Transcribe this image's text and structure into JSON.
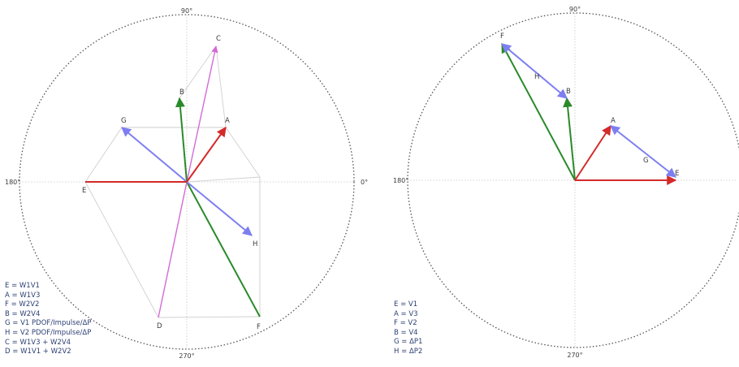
{
  "diagrams": [
    {
      "axis_labels": {
        "top": "90°",
        "left": "180°",
        "right": "0°",
        "bottom": "270°"
      },
      "legend": [
        "E = W1V1",
        "A = W1V3",
        "F = W2V2",
        "B = W2V4",
        "G = V1 PDOF/Impulse/ΔP",
        "H = V2 PDOF/Impulse/ΔP",
        "C = W1V3 + W2V4",
        "D = W1V1 + W2V2"
      ],
      "vectors": [
        {
          "label": "E"
        },
        {
          "label": "A"
        },
        {
          "label": "F"
        },
        {
          "label": "B"
        },
        {
          "label": "G"
        },
        {
          "label": "H"
        },
        {
          "label": "C"
        },
        {
          "label": "D"
        }
      ]
    },
    {
      "axis_labels": {
        "top": "90°",
        "left": "180°",
        "bottom": "270°"
      },
      "legend": [
        "E = V1",
        "A = V3",
        "F = V2",
        "B = V4",
        "G = ΔP1",
        "H = ΔP2"
      ],
      "vectors": [
        {
          "label": "E"
        },
        {
          "label": "A"
        },
        {
          "label": "F"
        },
        {
          "label": "B"
        },
        {
          "label": "G"
        },
        {
          "label": "H"
        }
      ]
    }
  ],
  "colors": {
    "red": "#d42a2a",
    "green": "#2a8a2a",
    "blue": "#7d7ff0",
    "magenta": "#d46ad8",
    "guide": "#cfcfcf",
    "circle": "#555555"
  }
}
